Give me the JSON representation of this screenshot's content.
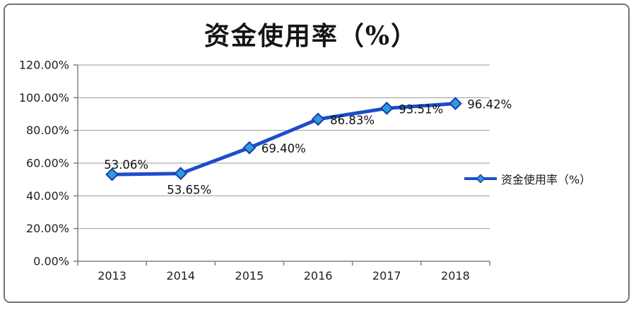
{
  "chart_data": {
    "type": "line",
    "title": "资金使用率（%）",
    "categories": [
      "2013",
      "2014",
      "2015",
      "2016",
      "2017",
      "2018"
    ],
    "series": [
      {
        "name": "资金使用率（%）",
        "values": [
          53.06,
          53.65,
          69.4,
          86.83,
          93.51,
          96.42
        ]
      }
    ],
    "point_labels": [
      "53.06%",
      "53.65%",
      "69.40%",
      "86.83%",
      "93.51%",
      "96.42%"
    ],
    "label_positions": [
      "above",
      "below",
      "right",
      "right",
      "right",
      "right"
    ],
    "xlabel": "",
    "ylabel": "",
    "ylim": [
      0,
      120
    ],
    "yticks": [
      "120.00%",
      "100.00%",
      "80.00%",
      "60.00%",
      "40.00%",
      "20.00%",
      "0.00%"
    ],
    "grid": "horizontal",
    "legend": {
      "label": "资金使用率（%）",
      "position": "right-middle"
    },
    "colors": {
      "line": "#1c4ecb",
      "marker_fill": "#2e9bdb",
      "marker_stroke": "#1a3cb0",
      "gridline": "#999999",
      "axis": "#808080",
      "text": "#1f1f1f",
      "frame_border": "#70757a",
      "background": "#ffffff"
    }
  }
}
